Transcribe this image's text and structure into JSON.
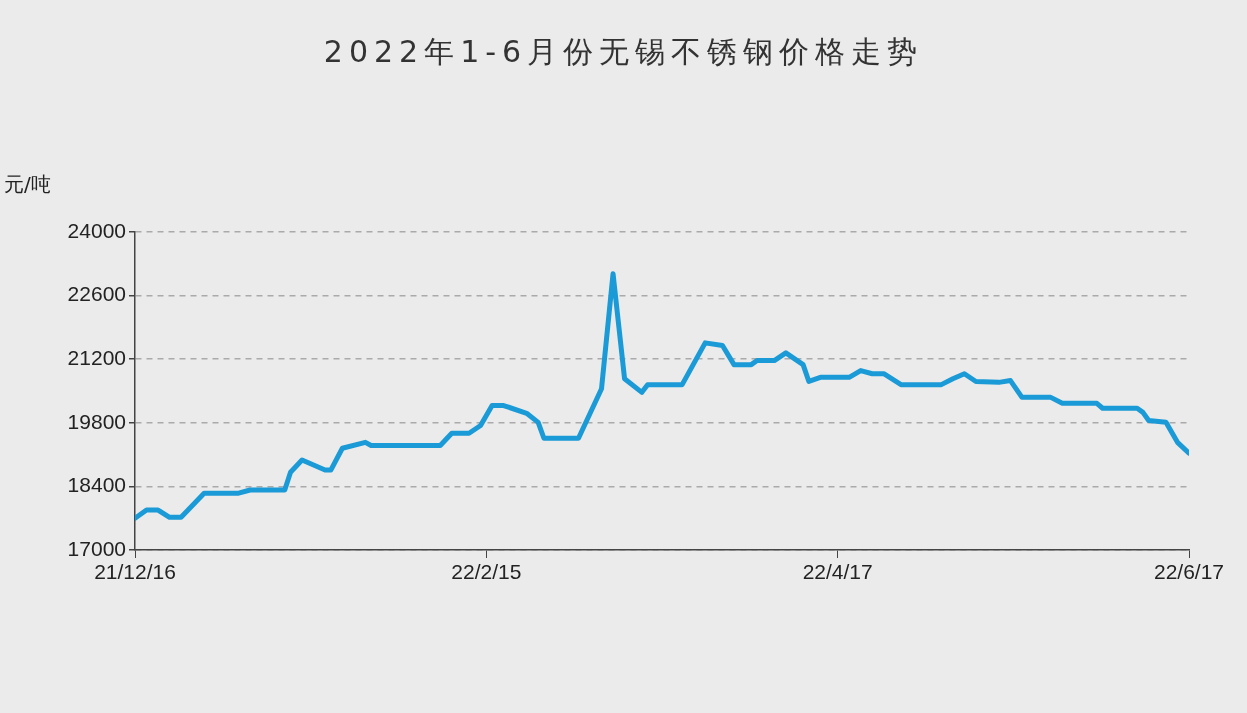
{
  "chart_data": {
    "type": "line",
    "title": "2022年1-6月份无锡不锈钢价格走势",
    "ylabel": "元/吨",
    "x": [
      "2021-12-16",
      "2021-12-18",
      "2021-12-20",
      "2021-12-22",
      "2021-12-24",
      "2021-12-28",
      "2022-01-03",
      "2022-01-05",
      "2022-01-11",
      "2022-01-12",
      "2022-01-14",
      "2022-01-18",
      "2022-01-19",
      "2022-01-21",
      "2022-01-25",
      "2022-01-26",
      "2022-02-07",
      "2022-02-09",
      "2022-02-12",
      "2022-02-14",
      "2022-02-16",
      "2022-02-18",
      "2022-02-22",
      "2022-02-24",
      "2022-02-25",
      "2022-03-03",
      "2022-03-07",
      "2022-03-09",
      "2022-03-11",
      "2022-03-14",
      "2022-03-15",
      "2022-03-21",
      "2022-03-25",
      "2022-03-28",
      "2022-03-30",
      "2022-04-02",
      "2022-04-03",
      "2022-04-06",
      "2022-04-08",
      "2022-04-11",
      "2022-04-12",
      "2022-04-14",
      "2022-04-19",
      "2022-04-21",
      "2022-04-23",
      "2022-04-25",
      "2022-04-28",
      "2022-05-05",
      "2022-05-07",
      "2022-05-09",
      "2022-05-11",
      "2022-05-15",
      "2022-05-17",
      "2022-05-19",
      "2022-05-24",
      "2022-05-26",
      "2022-06-01",
      "2022-06-02",
      "2022-06-08",
      "2022-06-09",
      "2022-06-10",
      "2022-06-13",
      "2022-06-15",
      "2022-06-17"
    ],
    "series": [
      {
        "color": "#1a9ad6",
        "values": [
          17700,
          17880,
          17880,
          17720,
          17720,
          18250,
          18250,
          18320,
          18320,
          18710,
          18980,
          18760,
          18760,
          19240,
          19370,
          19300,
          19300,
          19570,
          19570,
          19740,
          20180,
          20180,
          20010,
          19810,
          19460,
          19460,
          20550,
          23080,
          20770,
          20470,
          20640,
          20640,
          21560,
          21500,
          21080,
          21080,
          21170,
          21170,
          21340,
          21080,
          20710,
          20800,
          20800,
          20950,
          20880,
          20880,
          20640,
          20640,
          20770,
          20880,
          20710,
          20690,
          20730,
          20360,
          20360,
          20230,
          20230,
          20120,
          20120,
          20030,
          19850,
          19810,
          19370,
          19130
        ]
      }
    ],
    "xlim": [
      "2021-12-16",
      "2022-06-17"
    ],
    "xticks": [
      {
        "value": "2021-12-16",
        "label": "21/12/16"
      },
      {
        "value": "2022-02-15",
        "label": "22/2/15"
      },
      {
        "value": "2022-04-17",
        "label": "22/4/17"
      },
      {
        "value": "2022-06-17",
        "label": "22/6/17"
      }
    ],
    "ylim": [
      17000,
      24000
    ],
    "yticks": [
      17000,
      18400,
      19800,
      21200,
      22600,
      24000
    ],
    "grid": "y",
    "legend": false,
    "marker": "none",
    "line_style": "solid"
  }
}
